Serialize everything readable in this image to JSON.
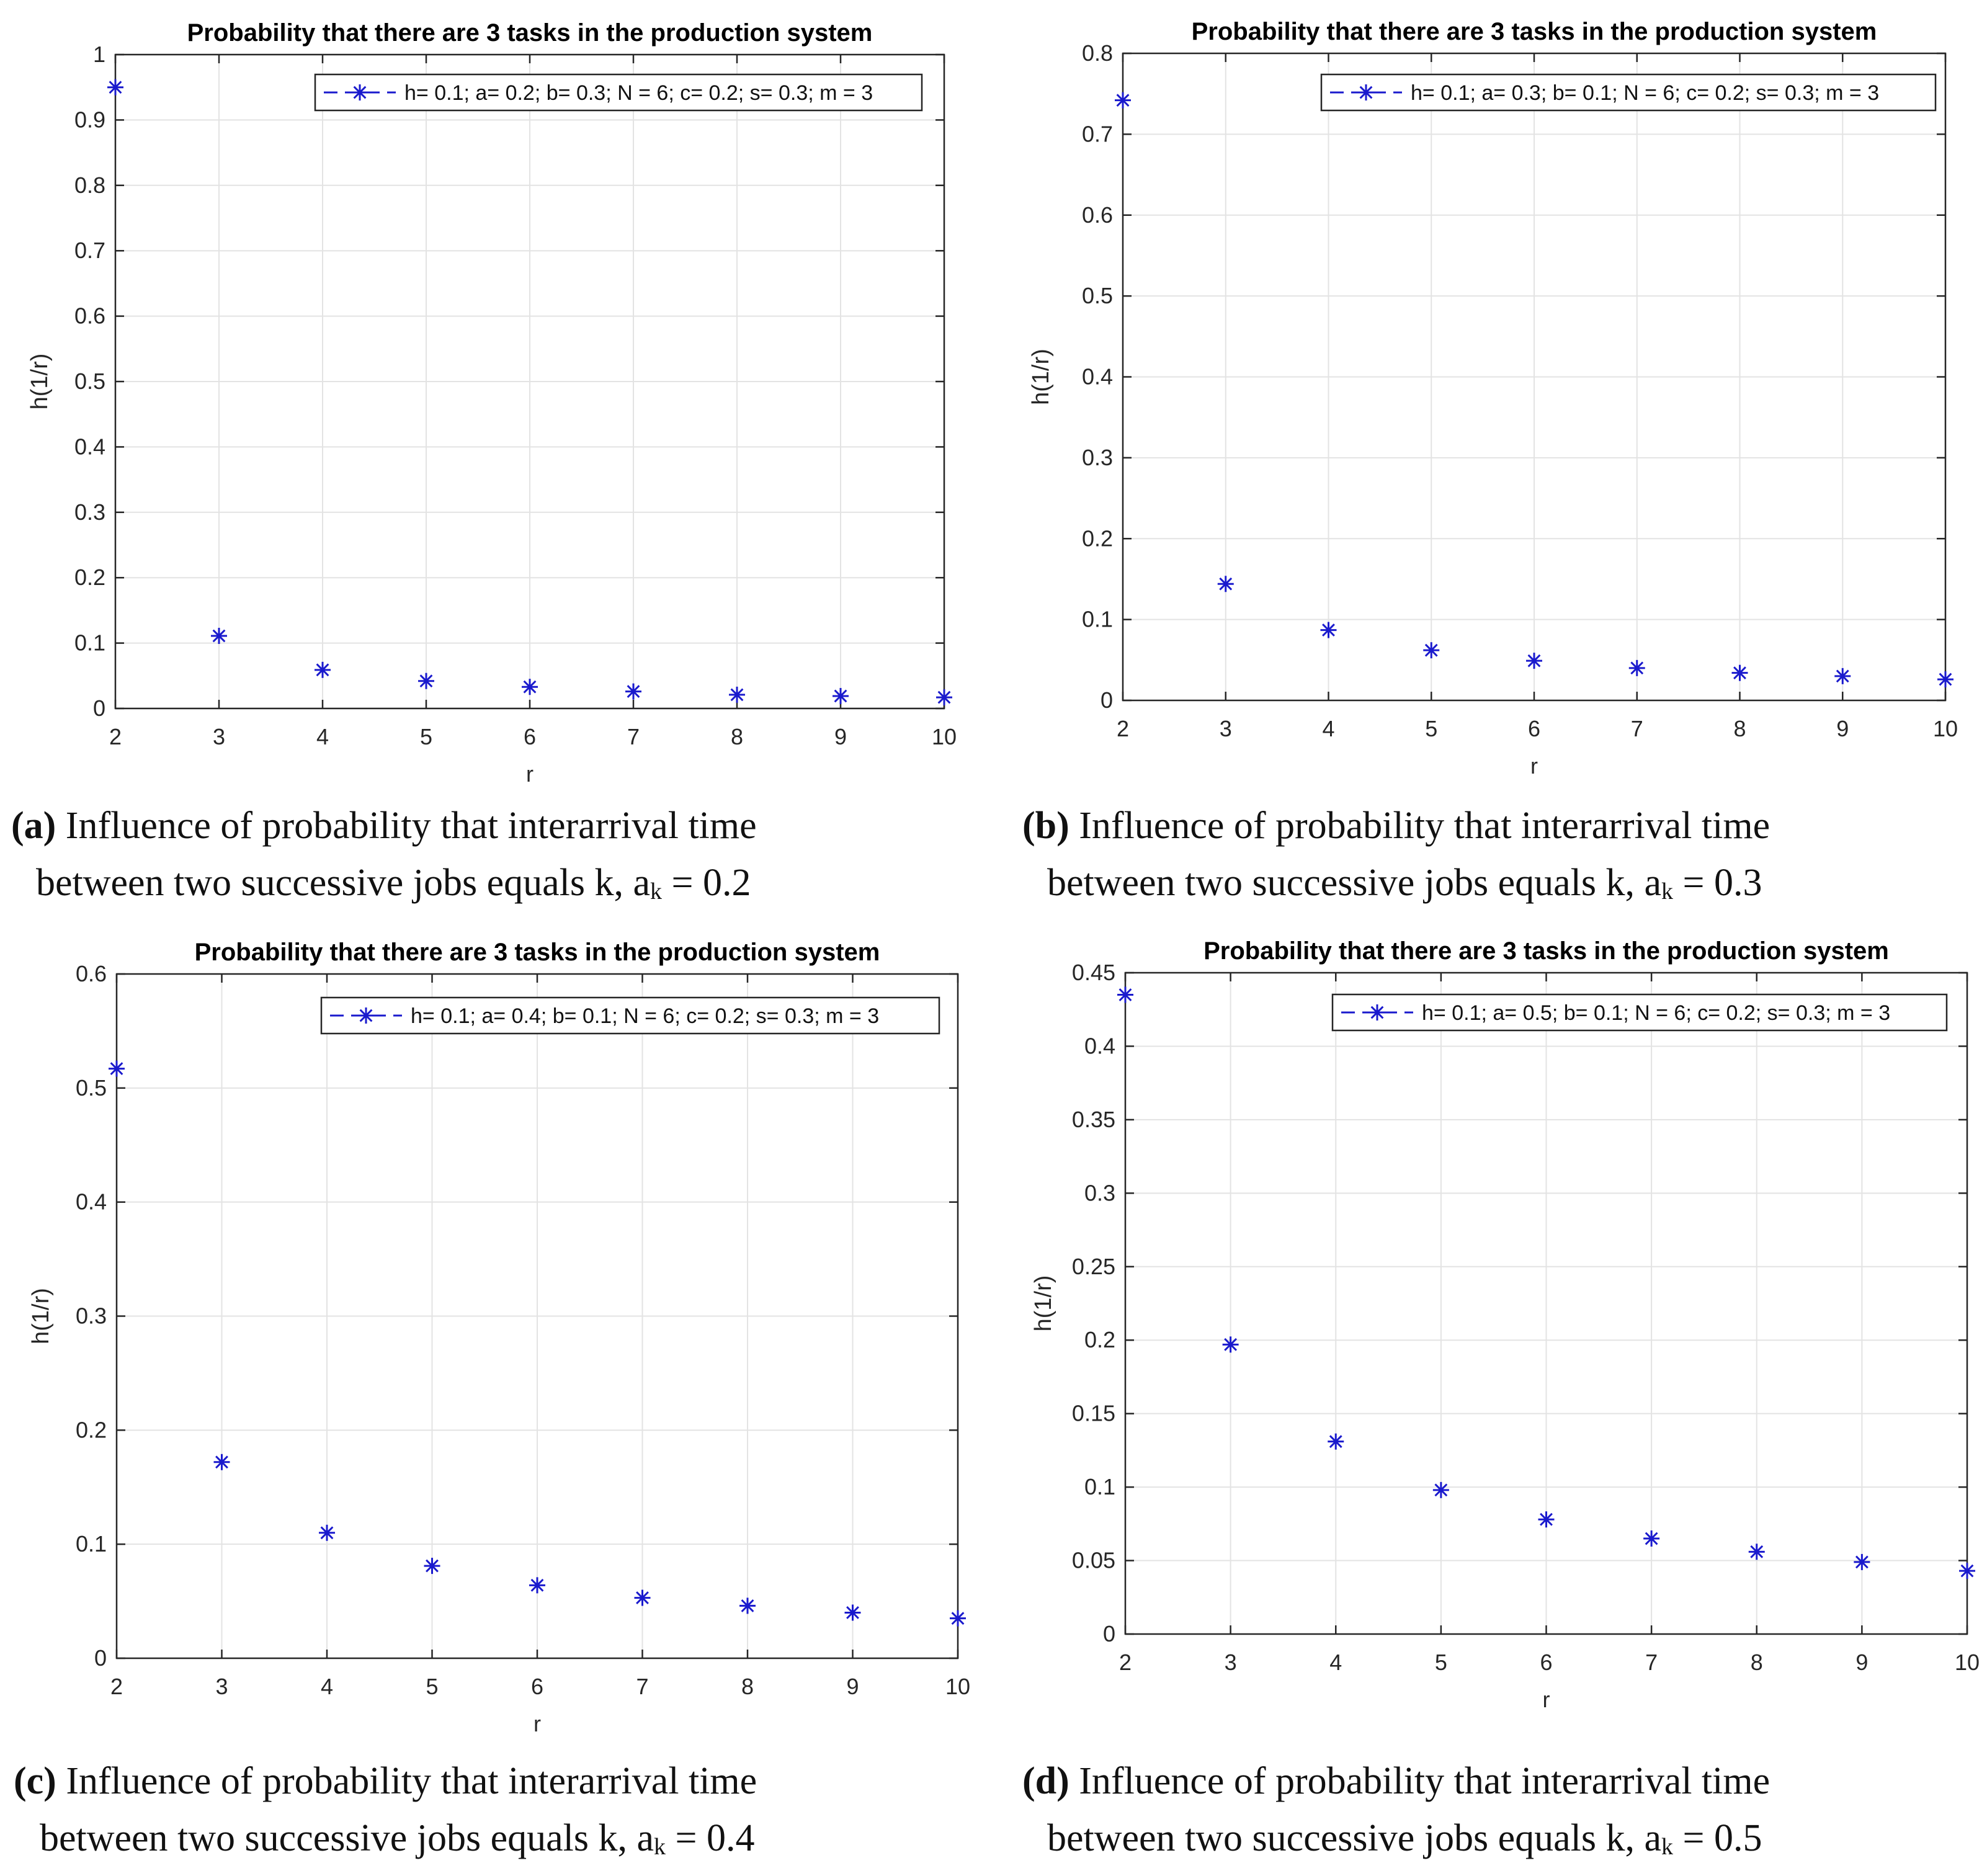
{
  "chart_data": [
    {
      "type": "scatter",
      "title": "Probability that there are 3 tasks in the production system",
      "xlabel": "r",
      "ylabel": "h(1/r)",
      "xlim": [
        2,
        10
      ],
      "ylim": [
        0,
        1
      ],
      "xticks": [
        "2",
        "3",
        "4",
        "5",
        "6",
        "7",
        "8",
        "9",
        "10"
      ],
      "yticks": [
        "0",
        "0.1",
        "0.2",
        "0.3",
        "0.4",
        "0.5",
        "0.6",
        "0.7",
        "0.8",
        "0.9",
        "1"
      ],
      "grid": true,
      "legend_position": "top-right",
      "series": [
        {
          "name": "h= 0.1; a= 0.2; b= 0.3; N = 6; c= 0.2; s= 0.3; m = 3",
          "marker": "*",
          "color": "#1a1acd",
          "x": [
            2,
            3,
            4,
            5,
            6,
            7,
            8,
            9,
            10
          ],
          "y": [
            0.95,
            0.111,
            0.059,
            0.042,
            0.033,
            0.026,
            0.021,
            0.019,
            0.017
          ]
        }
      ],
      "caption": {
        "tag": "(a)",
        "line1": "Influence of probability that interarrival time",
        "line2": "between two successive jobs equals k, a",
        "sub": "k",
        "value": "= 0.2"
      }
    },
    {
      "type": "scatter",
      "title": "Probability that there are 3 tasks in the production system",
      "xlabel": "r",
      "ylabel": "h(1/r)",
      "xlim": [
        2,
        10
      ],
      "ylim": [
        0,
        0.8
      ],
      "xticks": [
        "2",
        "3",
        "4",
        "5",
        "6",
        "7",
        "8",
        "9",
        "10"
      ],
      "yticks": [
        "0",
        "0.1",
        "0.2",
        "0.3",
        "0.4",
        "0.5",
        "0.6",
        "0.7",
        "0.8"
      ],
      "grid": true,
      "legend_position": "top-right",
      "series": [
        {
          "name": "h= 0.1; a= 0.3; b= 0.1; N = 6; c= 0.2; s= 0.3; m = 3",
          "marker": "*",
          "color": "#1a1acd",
          "x": [
            2,
            3,
            4,
            5,
            6,
            7,
            8,
            9,
            10
          ],
          "y": [
            0.742,
            0.144,
            0.087,
            0.062,
            0.049,
            0.04,
            0.034,
            0.03,
            0.026
          ]
        }
      ],
      "caption": {
        "tag": "(b)",
        "line1": "Influence of probability that interarrival time",
        "line2": "between two successive jobs equals k, a",
        "sub": "k",
        "value": "= 0.3"
      }
    },
    {
      "type": "scatter",
      "title": "Probability that there are 3 tasks in the production system",
      "xlabel": "r",
      "ylabel": "h(1/r)",
      "xlim": [
        2,
        10
      ],
      "ylim": [
        0,
        0.6
      ],
      "xticks": [
        "2",
        "3",
        "4",
        "5",
        "6",
        "7",
        "8",
        "9",
        "10"
      ],
      "yticks": [
        "0",
        "0.1",
        "0.2",
        "0.3",
        "0.4",
        "0.5",
        "0.6"
      ],
      "grid": true,
      "legend_position": "top-right",
      "series": [
        {
          "name": "h= 0.1; a= 0.4; b= 0.1; N = 6; c= 0.2; s= 0.3; m = 3",
          "marker": "*",
          "color": "#1a1acd",
          "x": [
            2,
            3,
            4,
            5,
            6,
            7,
            8,
            9,
            10
          ],
          "y": [
            0.517,
            0.172,
            0.11,
            0.081,
            0.064,
            0.053,
            0.046,
            0.04,
            0.035
          ]
        }
      ],
      "caption": {
        "tag": "(c)",
        "line1": "Influence of probability that interarrival time",
        "line2": "between two successive jobs equals k, a",
        "sub": "k",
        "value": "= 0.4"
      }
    },
    {
      "type": "scatter",
      "title": "Probability that there are 3 tasks in the production system",
      "xlabel": "r",
      "ylabel": "h(1/r)",
      "xlim": [
        2,
        10
      ],
      "ylim": [
        0,
        0.45
      ],
      "xticks": [
        "2",
        "3",
        "4",
        "5",
        "6",
        "7",
        "8",
        "9",
        "10"
      ],
      "yticks": [
        "0",
        "0.05",
        "0.1",
        "0.15",
        "0.2",
        "0.25",
        "0.3",
        "0.35",
        "0.4",
        "0.45"
      ],
      "grid": true,
      "legend_position": "top-right",
      "series": [
        {
          "name": "h= 0.1; a= 0.5; b= 0.1; N = 6; c= 0.2; s= 0.3; m = 3",
          "marker": "*",
          "color": "#1a1acd",
          "x": [
            2,
            3,
            4,
            5,
            6,
            7,
            8,
            9,
            10
          ],
          "y": [
            0.435,
            0.197,
            0.131,
            0.098,
            0.078,
            0.065,
            0.056,
            0.049,
            0.043
          ]
        }
      ],
      "caption": {
        "tag": "(d)",
        "line1": "Influence of probability that interarrival time",
        "line2": "between two successive jobs equals k, a",
        "sub": "k",
        "value": "= 0.5"
      }
    }
  ]
}
